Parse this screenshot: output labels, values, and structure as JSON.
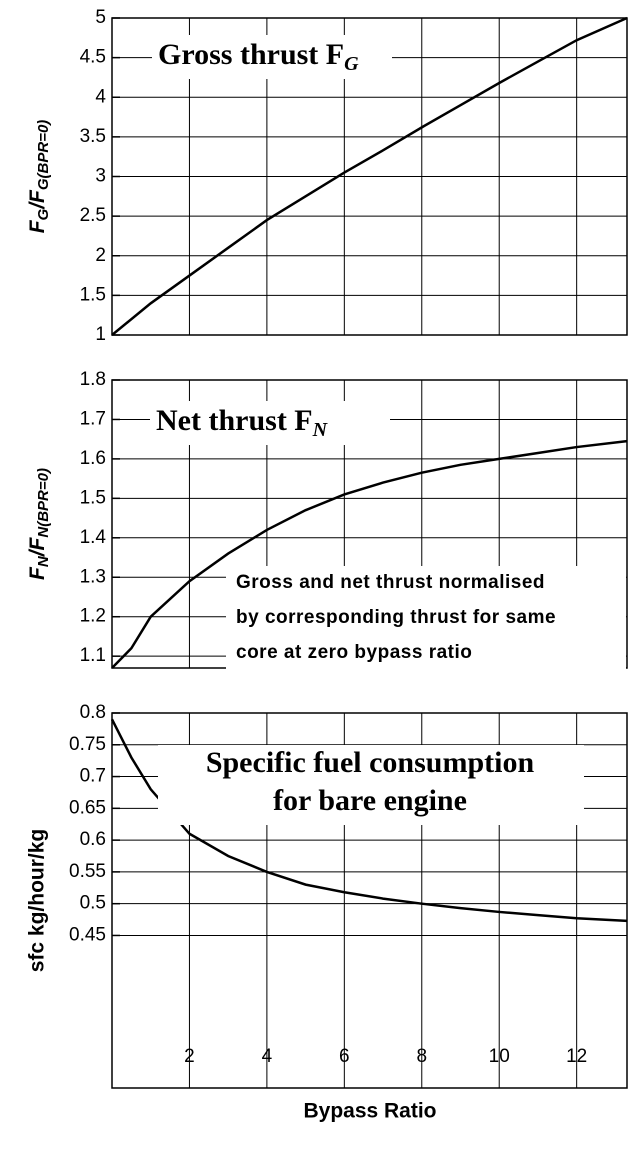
{
  "chart_data": [
    {
      "type": "line",
      "title": "Gross thrust F",
      "title_sub": "G",
      "ylabel_parts": [
        "F",
        "G",
        "/F",
        "G(BPR=0)"
      ],
      "x": [
        0,
        1,
        2,
        3,
        4,
        5,
        6,
        7,
        8,
        9,
        10,
        11,
        12,
        13.3
      ],
      "series": [
        {
          "color": "#000000",
          "values": [
            1,
            1.4,
            1.75,
            2.1,
            2.45,
            2.75,
            3.05,
            3.33,
            3.62,
            3.9,
            4.18,
            4.45,
            4.72,
            5.0
          ]
        }
      ],
      "xlim": [
        0,
        13.3
      ],
      "ylim": [
        1,
        5
      ],
      "yticks": [
        1,
        1.5,
        2,
        2.5,
        3,
        3.5,
        4,
        4.5,
        5
      ],
      "grid": true
    },
    {
      "type": "line",
      "title": "Net thrust F",
      "title_sub": "N",
      "ylabel_parts": [
        "F",
        "N",
        "/F",
        "N(BPR=0)"
      ],
      "annotation": [
        "Gross and net thrust normalised",
        "by corresponding thrust for same",
        "core at zero bypass ratio"
      ],
      "x": [
        0,
        0.5,
        1,
        2,
        3,
        4,
        5,
        6,
        7,
        8,
        9,
        10,
        11,
        12,
        13.3
      ],
      "series": [
        {
          "color": "#000000",
          "values": [
            1.07,
            1.12,
            1.2,
            1.29,
            1.36,
            1.42,
            1.47,
            1.51,
            1.54,
            1.565,
            1.585,
            1.6,
            1.615,
            1.63,
            1.645
          ]
        }
      ],
      "xlim": [
        0,
        13.3
      ],
      "ylim": [
        1.07,
        1.8
      ],
      "yticks": [
        1.1,
        1.2,
        1.3,
        1.4,
        1.5,
        1.6,
        1.7,
        1.8
      ],
      "grid": true
    },
    {
      "type": "line",
      "title_lines": [
        "Specific fuel consumption",
        "for bare engine"
      ],
      "ylabel": "sfc   kg/hour/kg",
      "xlabel": "Bypass Ratio",
      "x": [
        0,
        0.5,
        1,
        2,
        3,
        4,
        5,
        6,
        7,
        8,
        9,
        10,
        11,
        12,
        13.3
      ],
      "series": [
        {
          "color": "#000000",
          "values": [
            0.79,
            0.73,
            0.68,
            0.61,
            0.575,
            0.55,
            0.53,
            0.518,
            0.508,
            0.5,
            0.493,
            0.487,
            0.482,
            0.477,
            0.473
          ]
        }
      ],
      "xlim": [
        0,
        13.3
      ],
      "ylim": [
        0.21,
        0.8
      ],
      "xticks": [
        2,
        4,
        6,
        8,
        10,
        12
      ],
      "yticks": [
        0.45,
        0.5,
        0.55,
        0.6,
        0.65,
        0.7,
        0.75,
        0.8
      ],
      "grid": true
    }
  ]
}
